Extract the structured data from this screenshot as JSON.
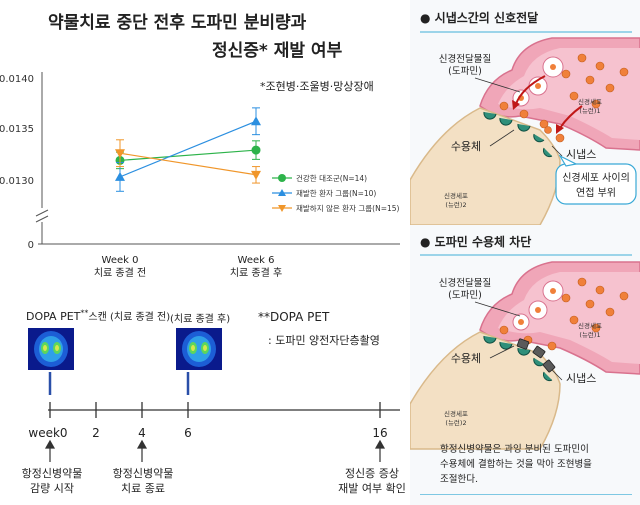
{
  "chart": {
    "title_line1": "약물치료 중단 전후 도파민 분비량과",
    "title_line2": "정신증* 재발 여부",
    "footnote": "*조현병·조울병·망상장애",
    "y_ticks": [
      "0.0140",
      "0.0135",
      "0.0130",
      "0"
    ],
    "x_labels": [
      {
        "week": "Week 0",
        "caption": "치료 종결 전"
      },
      {
        "week": "Week 6",
        "caption": "치료 종결 후"
      }
    ],
    "legend": [
      {
        "label": "건강한 대조군(N=14)",
        "color": "#2db34a",
        "marker": "circle"
      },
      {
        "label": "재발한 환자 그룹(N=10)",
        "color": "#2b8fe0",
        "marker": "triangle-up"
      },
      {
        "label": "재발하지 않은 환자 그룹(N=15)",
        "color": "#f0962a",
        "marker": "triangle-down"
      }
    ]
  },
  "chart_data": {
    "type": "line",
    "categories": [
      "Week 0",
      "Week 6"
    ],
    "ylim": [
      0.0128,
      0.0141
    ],
    "series": [
      {
        "name": "건강한 대조군(N=14)",
        "values": [
          0.0132,
          0.0133
        ],
        "errors": [
          8e-05,
          9e-05
        ],
        "color": "#2db34a",
        "marker": "circle"
      },
      {
        "name": "재발한 환자 그룹(N=10)",
        "values": [
          0.01304,
          0.01358
        ],
        "errors": [
          0.00014,
          0.00013
        ],
        "color": "#2b8fe0",
        "marker": "triangle-up"
      },
      {
        "name": "재발하지 않은 환자 그룹(N=15)",
        "values": [
          0.01327,
          0.01306
        ],
        "errors": [
          0.00013,
          8e-05
        ],
        "color": "#f0962a",
        "marker": "triangle-down"
      }
    ]
  },
  "timeline": {
    "scan_label_main": "DOPA PET",
    "scan_label_sup": "**",
    "scan_label_rest": "스캔 (치료 종결 전)",
    "scan2_label": "(치료 종결 후)",
    "note_title": "**DOPA PET",
    "note_body": ": 도파민 양전자단층촬영",
    "ticks": [
      "week0",
      "2",
      "4",
      "6",
      "16"
    ],
    "events": [
      {
        "line1": "항정신병약물",
        "line2": "감량 시작"
      },
      {
        "line1": "항정신병약물",
        "line2": "치료 종료"
      },
      {
        "line1": "정신증 증상",
        "line2": "재발 여부 확인"
      }
    ]
  },
  "panel1": {
    "header": "● 시냅스간의 신호전달",
    "nt_line1": "신경전달물질",
    "nt_line2": "(도파민)",
    "neuron1_line1": "신경세포",
    "neuron1_line2": "(뉴런)1",
    "receptor": "수용체",
    "synapse": "시냅스",
    "neuron2_line1": "신경세포",
    "neuron2_line2": "(뉴런)2",
    "bubble_line1": "신경세포 사이의",
    "bubble_line2": "연접 부위"
  },
  "panel2": {
    "header": "● 도파민 수용체 차단",
    "nt_line1": "신경전달물질",
    "nt_line2": "(도파민)",
    "neuron1_line1": "신경세포",
    "neuron1_line2": "(뉴런)1",
    "receptor": "수용체",
    "synapse": "시냅스",
    "neuron2_line1": "신경세포",
    "neuron2_line2": "(뉴런)2"
  },
  "caption": {
    "line1": "항정신병약물은 과잉 분비된 도파민이",
    "line2": "수용체에 결합하는 것을 막아 조현병을",
    "line3": "조절한다."
  }
}
